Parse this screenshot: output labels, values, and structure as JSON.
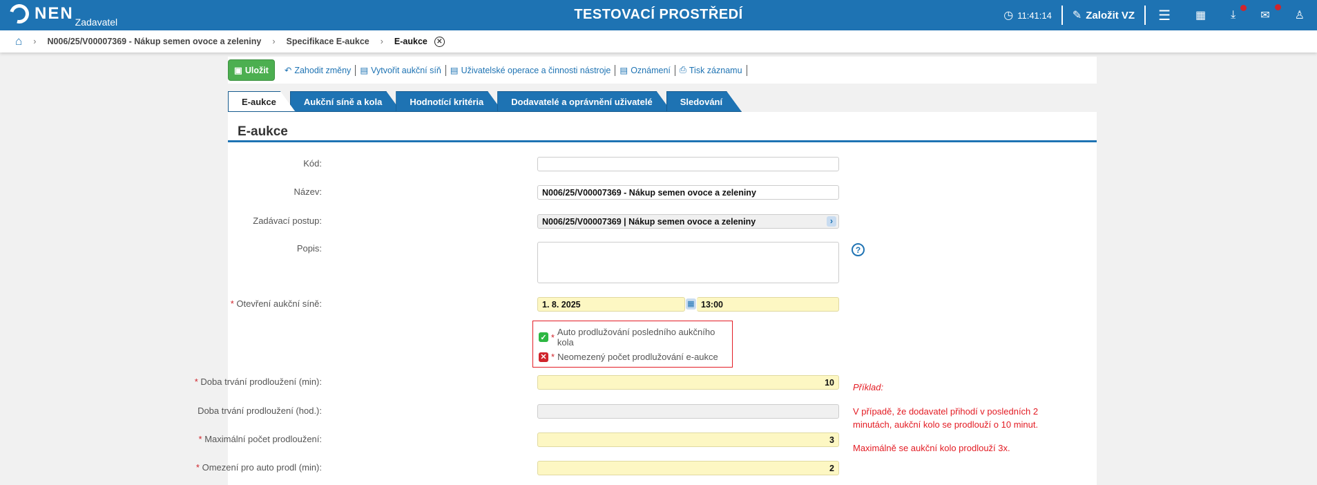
{
  "header": {
    "logo": "NEN",
    "logo_sub": "Zadavatel",
    "title": "TESTOVACÍ PROSTŘEDÍ",
    "time": "11:41:14",
    "create_label": "Založit VZ",
    "accent": "#1e73b3"
  },
  "breadcrumb": [
    "N006/25/V00007369 - Nákup semen ovoce a zeleniny",
    "Specifikace E-aukce",
    "E-aukce"
  ],
  "toolbar": {
    "save": "Uložit",
    "discard": "Zahodit změny",
    "create_room": "Vytvořit aukční síň",
    "user_ops": "Uživatelské operace a činnosti nástroje",
    "notices": "Oznámení",
    "print": "Tisk záznamu"
  },
  "tabs": [
    "E-aukce",
    "Aukční síně a kola",
    "Hodnotící kritéria",
    "Dodavatelé a oprávnění uživatelé",
    "Sledování"
  ],
  "panel_title": "E-aukce",
  "form": {
    "kod": {
      "label": "Kód:",
      "value": ""
    },
    "nazev": {
      "label": "Název:",
      "value": "N006/25/V00007369 - Nákup semen ovoce a zeleniny"
    },
    "postup": {
      "label": "Zadávací postup:",
      "value": "N006/25/V00007369 | Nákup semen ovoce a zeleniny"
    },
    "popis": {
      "label": "Popis:",
      "value": ""
    },
    "otevreni": {
      "label": "Otevření aukční síně:",
      "date": "1. 8. 2025",
      "time": "13:00"
    },
    "auto": {
      "label": "Auto prodlužování posledního aukčního kola",
      "checked": true
    },
    "neomezeny": {
      "label": "Neomezený počet prodlužování e-aukce",
      "checked": false
    },
    "doba_min": {
      "label": "Doba trvání prodloužení (min):",
      "value": "10"
    },
    "doba_hod": {
      "label": "Doba trvání prodloužení (hod.):",
      "value": ""
    },
    "max": {
      "label": "Maximální počet prodloužení:",
      "value": "3"
    },
    "omezeni": {
      "label": "Omezení pro auto prodl (min):",
      "value": "2"
    }
  },
  "example": {
    "title": "Příklad",
    "line1": "V případě, že dodavatel přihodí v posledních 2",
    "line2": "minutách, aukční kolo se prodlouží o 10 minut.",
    "line3": "Maximálně se aukční kolo prodlouží 3x."
  }
}
